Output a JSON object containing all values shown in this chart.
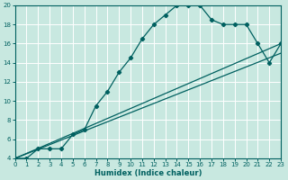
{
  "xlabel": "Humidex (Indice chaleur)",
  "bg_color": "#c8e8e0",
  "line_color": "#006060",
  "grid_color": "#ffffff",
  "xmin": 0,
  "xmax": 23,
  "ymin": 4,
  "ymax": 20,
  "line1_x": [
    0,
    1,
    2,
    3,
    4,
    5,
    6,
    7,
    8,
    9,
    10,
    11,
    12,
    13,
    14,
    15,
    16,
    17,
    18,
    19,
    20,
    21,
    22,
    23
  ],
  "line1_y": [
    4,
    4,
    5,
    5,
    5,
    6.5,
    7,
    9.5,
    11,
    13,
    14.5,
    16.5,
    18,
    19,
    20,
    20,
    20,
    18.5,
    18,
    18,
    18,
    16,
    14,
    16
  ],
  "line2_x": [
    0,
    23
  ],
  "line2_y": [
    4,
    16
  ],
  "line3_x": [
    0,
    23
  ],
  "line3_y": [
    4,
    15
  ],
  "xticks": [
    0,
    1,
    2,
    3,
    4,
    5,
    6,
    7,
    8,
    9,
    10,
    11,
    12,
    13,
    14,
    15,
    16,
    17,
    18,
    19,
    20,
    21,
    22,
    23
  ],
  "yticks": [
    4,
    6,
    8,
    10,
    12,
    14,
    16,
    18,
    20
  ],
  "tick_fontsize": 5,
  "xlabel_fontsize": 6
}
